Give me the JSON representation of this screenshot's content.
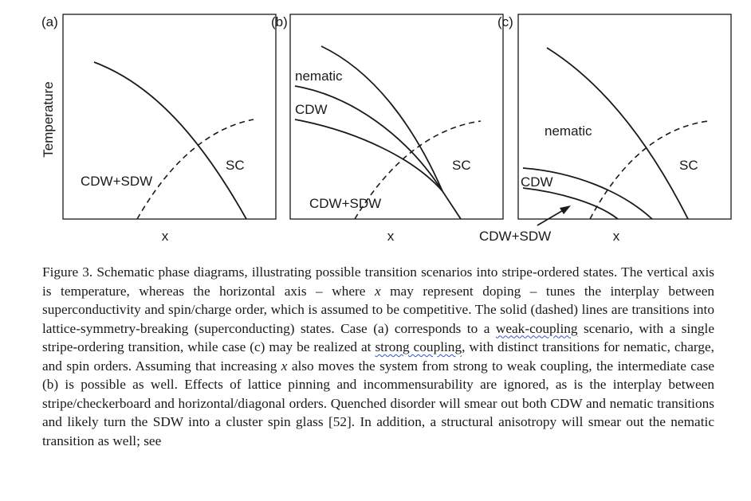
{
  "figure": {
    "panels": [
      {
        "id": "a",
        "tag": "(a)",
        "y_axis_label": "Temperature",
        "x_axis_label": "x",
        "labels": {
          "sc": "SC",
          "cdw_sdw": "CDW+SDW"
        }
      },
      {
        "id": "b",
        "tag": "(b)",
        "x_axis_label": "x",
        "labels": {
          "nematic": "nematic",
          "cdw": "CDW",
          "sc": "SC",
          "cdw_sdw": "CDW+SDW"
        }
      },
      {
        "id": "c",
        "tag": "(c)",
        "x_axis_label": "x",
        "labels": {
          "nematic": "nematic",
          "cdw": "CDW",
          "sc": "SC",
          "cdw_sdw": "CDW+SDW"
        }
      }
    ]
  },
  "caption": {
    "part1": "Figure 3. Schematic phase diagrams, illustrating possible transition scenarios into stripe-ordered states. The vertical axis is temperature, whereas the horizontal axis – where ",
    "x1": "x",
    "part2": " may represent doping – tunes the interplay between superconductivity and spin/charge order, which is assumed to be competitive. The solid (dashed) lines are transitions into lattice-symmetry-breaking (superconducting) states. Case (a) corresponds to a ",
    "weak_coupling": "weak-coupling",
    "part3": " scenario, with a single stripe-ordering transition, while case (c) may be realized at ",
    "strong_coupling": "strong coupling",
    "part4": ", with distinct transitions for nematic, charge, and spin orders. Assuming that increasing ",
    "x2": "x",
    "part5": " also moves the system from strong to weak coupling, the intermediate case (b) is possible as well. Effects of lattice pinning and incommensurability are ignored, as is the interplay between stripe/checkerboard and horizontal/diagonal orders. Quenched disorder will smear out both CDW and nematic transitions and likely turn the SDW into a cluster spin glass [52]. In addition, a structural anisotropy will smear out the nematic transition as well; see"
  }
}
